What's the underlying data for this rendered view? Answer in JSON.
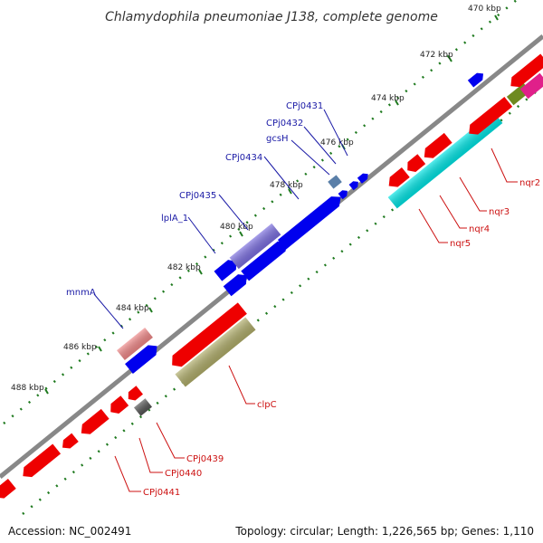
{
  "title": "Chlamydophila pneumoniae J138, complete genome",
  "footer": {
    "accession": "Accession: NC_002491",
    "summary": "Topology: circular; Length: 1,226,565 bp; Genes: 1,110"
  },
  "ticks": [
    "470 kbp",
    "472 kbp",
    "474 kbp",
    "476 kbp",
    "478 kbp",
    "480 kbp",
    "482 kbp",
    "484 kbp",
    "486 kbp",
    "488 kbp"
  ],
  "gene_labels": {
    "CPj0431": "CPj0431",
    "CPj0432": "CPj0432",
    "gcsH": "gcsH",
    "CPj0434": "CPj0434",
    "CPj0435": "CPj0435",
    "lplA_1": "lplA_1",
    "mnmA": "mnmA",
    "nqr2": "nqr2",
    "nqr3": "nqr3",
    "nqr4": "nqr4",
    "nqr5": "nqr5",
    "clpC": "clpC",
    "CPj0439": "CPj0439",
    "CPj0440": "CPj0440",
    "CPj0441": "CPj0441"
  },
  "colors": {
    "forward_gene": "#0000ee",
    "reverse_gene": "#ee0000",
    "backbone": "#888888",
    "tick": "#1f7a1f",
    "forward_label": "#1a1aa6",
    "reverse_label": "#cc1111",
    "cyan_feature": "#00e5e5",
    "olive_feature": "#b0ad6a",
    "lavender_feature": "#7b6ee0",
    "pink_feature": "#f08888",
    "grey_feature": "#555555",
    "steel_feature": "#5a7fa8",
    "magenta_feature": "#e0208a",
    "green_feature": "#6e8a20"
  }
}
